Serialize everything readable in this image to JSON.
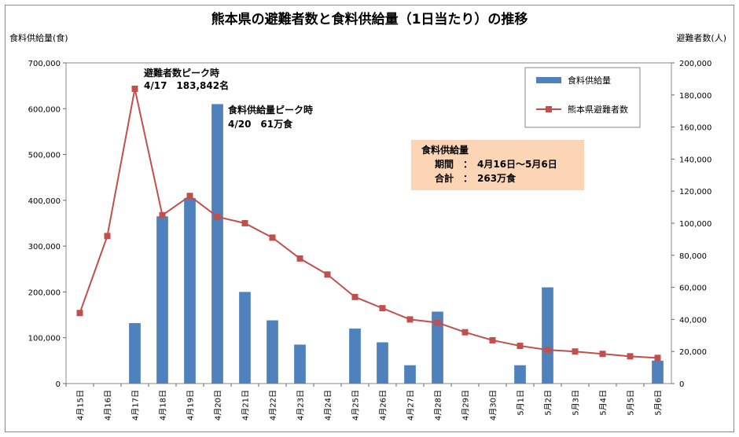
{
  "chart_data": {
    "type": "bar+line",
    "title": "熊本県の避難者数と食料供給量（1日当たり）の推移",
    "ylabel_left": "食料供給量(食)",
    "ylabel_right": "避難者数(人)",
    "categories": [
      "4月15日",
      "4月16日",
      "4月17日",
      "4月18日",
      "4月19日",
      "4月20日",
      "4月21日",
      "4月22日",
      "4月23日",
      "4月24日",
      "4月25日",
      "4月26日",
      "4月27日",
      "4月28日",
      "4月29日",
      "4月30日",
      "5月1日",
      "5月2日",
      "5月3日",
      "5月4日",
      "5月5日",
      "5月6日"
    ],
    "ylim_left": [
      0,
      700000
    ],
    "ylim_right": [
      0,
      200000
    ],
    "yticks_left": [
      "0",
      "100,000",
      "200,000",
      "300,000",
      "400,000",
      "500,000",
      "600,000",
      "700,000"
    ],
    "yticks_right": [
      "0",
      "20,000",
      "40,000",
      "60,000",
      "80,000",
      "100,000",
      "120,000",
      "140,000",
      "160,000",
      "180,000",
      "200,000"
    ],
    "series": [
      {
        "name": "食料供給量",
        "kind": "bar",
        "axis": "left",
        "color": "#4f81bd",
        "values": [
          0,
          0,
          132000,
          365000,
          405000,
          610000,
          200000,
          138000,
          85000,
          0,
          120000,
          90000,
          40000,
          157000,
          0,
          0,
          40000,
          210000,
          0,
          0,
          0,
          50000
        ]
      },
      {
        "name": "熊本県避難者数",
        "kind": "line",
        "axis": "right",
        "color": "#c0504d",
        "values": [
          44000,
          92000,
          183842,
          105000,
          117000,
          104000,
          100000,
          91000,
          78000,
          68000,
          54000,
          47000,
          40000,
          38000,
          32000,
          27000,
          23500,
          21000,
          20000,
          18500,
          17000,
          16000
        ]
      }
    ],
    "legend_position": "top-right",
    "annotations": {
      "peak_evacuees": {
        "line1": "避難者数ピーク時",
        "line2": "4/17　183,842名"
      },
      "peak_food": {
        "line1": "食料供給量ピーク時",
        "line2": "4/20　61万食"
      }
    },
    "info_box": {
      "title": "食料供給量",
      "line1": "期間　：　4月16日～5月6日",
      "line2": "合計　：　263万食",
      "background": "#fbd5b5"
    }
  }
}
